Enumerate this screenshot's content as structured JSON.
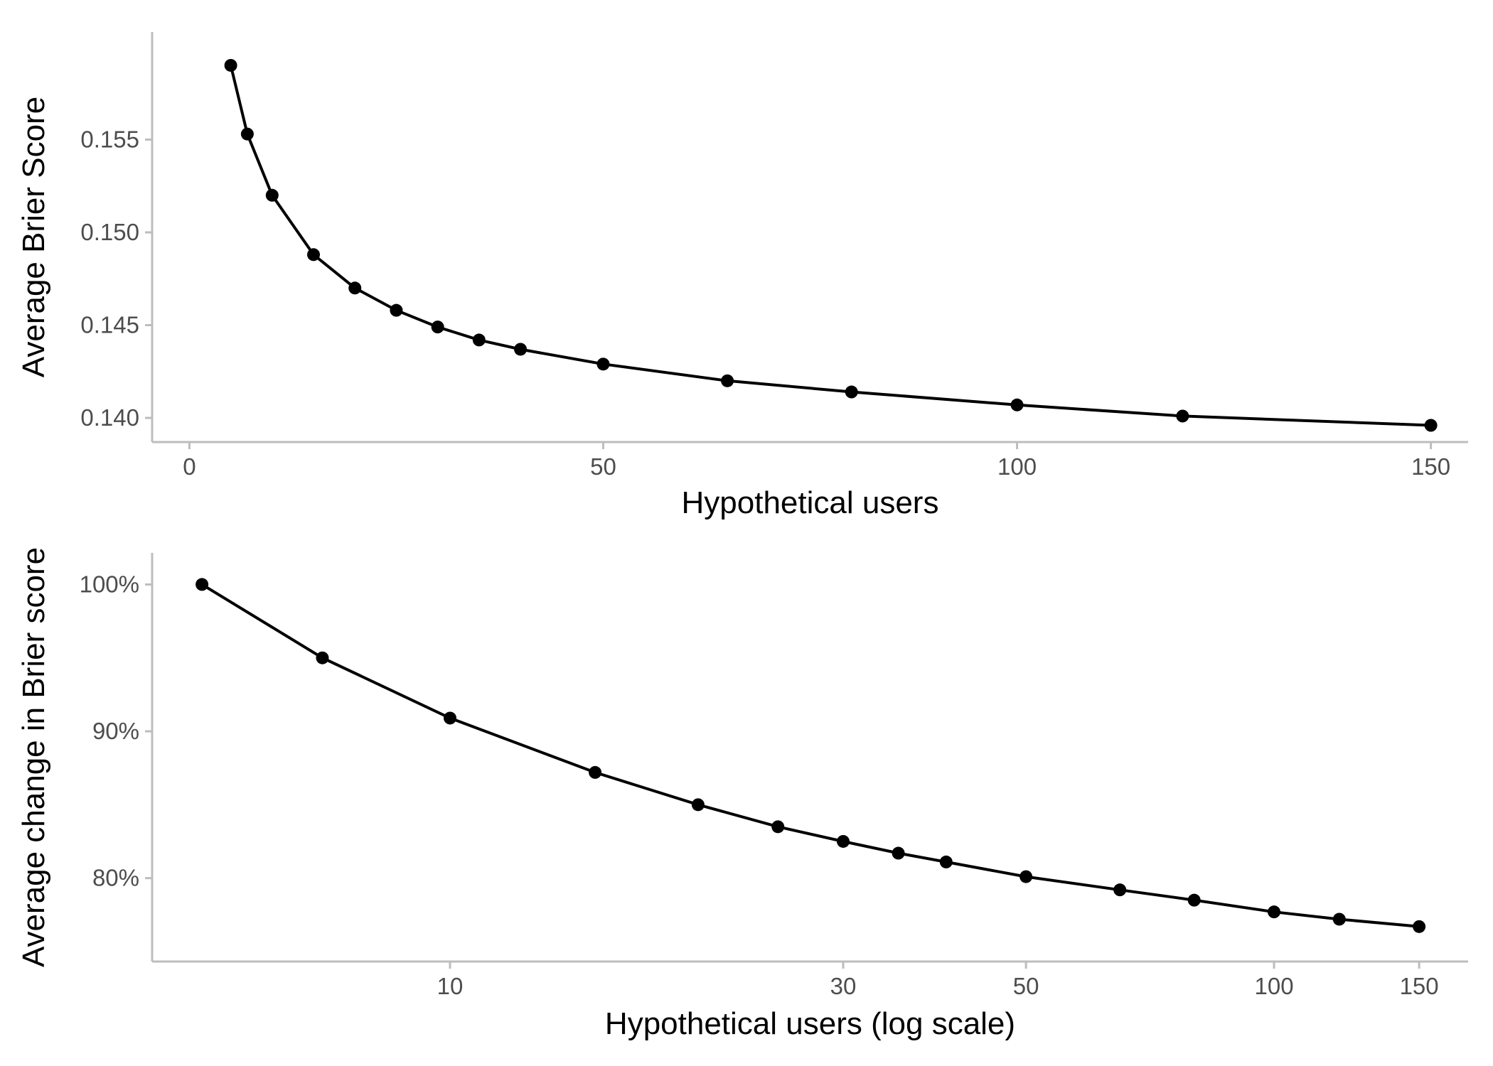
{
  "chart_data": [
    {
      "type": "line",
      "xlabel": "Hypothetical users",
      "ylabel": "Average Brier Score",
      "xscale": "linear",
      "xlim": [
        -4.5,
        154.5
      ],
      "ylim": [
        0.1387,
        0.1608
      ],
      "xticks": [
        0,
        50,
        100,
        150
      ],
      "yticks": [
        0.14,
        0.145,
        0.15,
        0.155
      ],
      "xtick_labels": [
        "0",
        "50",
        "100",
        "150"
      ],
      "ytick_labels": [
        "0.140",
        "0.145",
        "0.150",
        "0.155"
      ],
      "grid": false,
      "series": [
        {
          "x": [
            5,
            7,
            10,
            15,
            20,
            25,
            30,
            35,
            40,
            50,
            65,
            80,
            100,
            120,
            150
          ],
          "y": [
            0.159,
            0.1553,
            0.152,
            0.1488,
            0.147,
            0.1458,
            0.1449,
            0.1442,
            0.1437,
            0.1429,
            0.142,
            0.1414,
            0.1407,
            0.1401,
            0.1396
          ]
        }
      ]
    },
    {
      "type": "line",
      "xlabel": "Hypothetical users (log scale)",
      "ylabel": "Average change in Brier score",
      "xscale": "log",
      "xlim": [
        4.35,
        172
      ],
      "ylim": [
        0.7432,
        1.0215
      ],
      "xticks": [
        10,
        30,
        50,
        100,
        150
      ],
      "yticks": [
        0.8,
        0.9,
        1.0
      ],
      "xtick_labels": [
        "10",
        "30",
        "50",
        "100",
        "150"
      ],
      "ytick_labels": [
        "80%",
        "90%",
        "100%"
      ],
      "grid": false,
      "series": [
        {
          "x": [
            5,
            7,
            10,
            15,
            20,
            25,
            30,
            35,
            40,
            50,
            65,
            80,
            100,
            120,
            150
          ],
          "y": [
            1.0,
            0.95,
            0.909,
            0.872,
            0.85,
            0.835,
            0.825,
            0.817,
            0.811,
            0.801,
            0.792,
            0.785,
            0.777,
            0.772,
            0.767
          ]
        }
      ]
    }
  ]
}
